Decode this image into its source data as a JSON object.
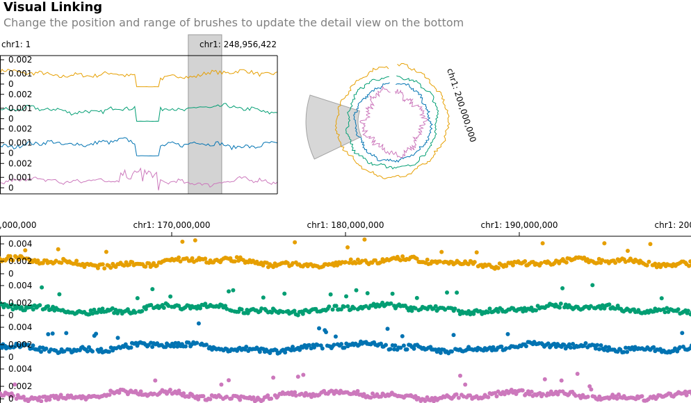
{
  "header": {
    "title": "Visual Linking",
    "subtitle": "Change the position and range of brushes to update the detail view on the bottom"
  },
  "colors": {
    "series": [
      "#e69f00",
      "#029e73",
      "#0173b2",
      "#cc78bc"
    ],
    "brush_fill": "#d3d3d3",
    "axis": "#000000"
  },
  "chart_data": [
    {
      "type": "line",
      "name": "overview-linear",
      "title": "",
      "x_range_labels": {
        "start": "chr1: 1",
        "end": "chr1: 248,956,422"
      },
      "xlim": [
        1,
        248956422
      ],
      "brush": [
        169000000,
        199000000
      ],
      "tracks": [
        {
          "color": "#e69f00",
          "ytick_labels": [
            "0.002",
            "0.001",
            "0"
          ],
          "ylim": [
            0,
            0.0025
          ]
        },
        {
          "color": "#029e73",
          "ytick_labels": [
            "0.002",
            "0.001",
            "0"
          ],
          "ylim": [
            0,
            0.0025
          ]
        },
        {
          "color": "#0173b2",
          "ytick_labels": [
            "0.002",
            "0.001",
            "0"
          ],
          "ylim": [
            0,
            0.0025
          ]
        },
        {
          "color": "#cc78bc",
          "ytick_labels": [
            "0.002",
            "0.001",
            "0"
          ],
          "ylim": [
            0,
            0.0025
          ]
        }
      ],
      "gap": [
        121000000,
        143000000
      ],
      "grid": false
    },
    {
      "type": "line",
      "name": "overview-circular",
      "layout": "circular",
      "brush_label": "chr1: 200,000,000",
      "brush": [
        169000000,
        199000000
      ],
      "rings": [
        "#e69f00",
        "#029e73",
        "#0173b2",
        "#cc78bc"
      ],
      "grid": false
    },
    {
      "type": "scatter",
      "name": "detail-view",
      "xlim": [
        160000000,
        200000000
      ],
      "x_tick_labels": [
        "chr1: 160,000,000",
        "chr1: 170,000,000",
        "chr1: 180,000,000",
        "chr1: 190,000,000",
        "chr1: 200,000,000"
      ],
      "x_tick_values": [
        160000000,
        170000000,
        180000000,
        190000000,
        200000000
      ],
      "tracks": [
        {
          "color": "#e69f00",
          "ytick_labels": [
            "0.004",
            "0.002",
            "0"
          ],
          "ylim": [
            0,
            0.005
          ]
        },
        {
          "color": "#029e73",
          "ytick_labels": [
            "0.004",
            "0.002",
            "0"
          ],
          "ylim": [
            0,
            0.005
          ]
        },
        {
          "color": "#0173b2",
          "ytick_labels": [
            "0.004",
            "0.002",
            "0"
          ],
          "ylim": [
            0,
            0.005
          ]
        },
        {
          "color": "#cc78bc",
          "ytick_labels": [
            "0.004",
            "0.002",
            "0"
          ],
          "ylim": [
            0,
            0.005
          ]
        }
      ],
      "grid": false
    }
  ]
}
